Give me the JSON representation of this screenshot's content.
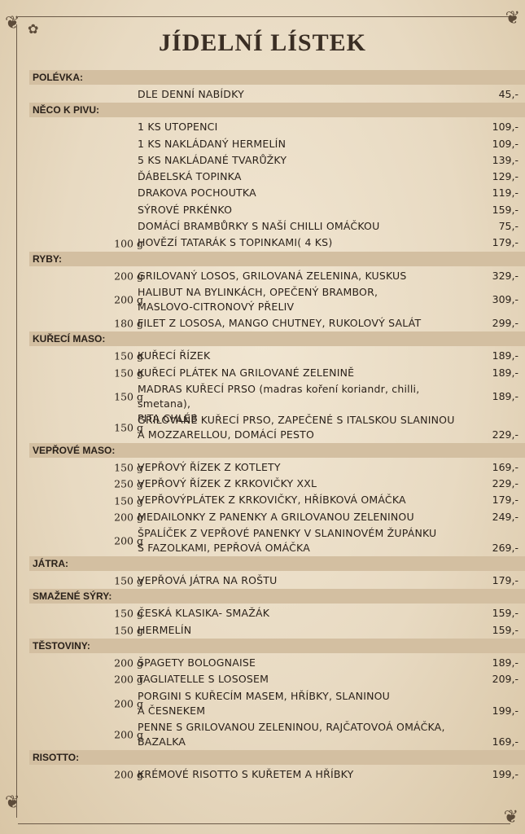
{
  "menu": {
    "title": "JÍDELNÍ LÍSTEK",
    "sections": [
      {
        "name": "POLÉVKA:",
        "items": [
          {
            "weight": "",
            "name": "DLE DENNÍ NABÍDKY",
            "price": "45,-",
            "lines": 1
          }
        ]
      },
      {
        "name": "NĚCO K PIVU:",
        "items": [
          {
            "weight": "",
            "name": "1 KS UTOPENCI",
            "price": "109,-",
            "lines": 1
          },
          {
            "weight": "",
            "name": "1 KS NAKLÁDANÝ HERMELÍN",
            "price": "109,-",
            "lines": 1
          },
          {
            "weight": "",
            "name": "5 KS NAKLÁDANÉ TVARŮŽKY",
            "price": "139,-",
            "lines": 1
          },
          {
            "weight": "",
            "name": "ĎÁBELSKÁ TOPINKA",
            "price": "129,-",
            "lines": 1
          },
          {
            "weight": "",
            "name": "DRAKOVA POCHOUTKA",
            "price": "119,-",
            "lines": 1
          },
          {
            "weight": "",
            "name": "SÝROVÉ PRKÉNKO",
            "price": "159,-",
            "lines": 1
          },
          {
            "weight": "",
            "name": "DOMÁCÍ BRAMBŮRKY S NAŠÍ CHILLI OMÁČKOU",
            "price": "75,-",
            "lines": 1
          },
          {
            "weight": "100 g",
            "name": "HOVĚZÍ TATARÁK S TOPINKAMI( 4 KS)",
            "price": "179,-",
            "lines": 1
          }
        ]
      },
      {
        "name": "RYBY:",
        "items": [
          {
            "weight": "200 g",
            "name": "GRILOVANÝ LOSOS, GRILOVANÁ ZELENINA, KUSKUS",
            "price": "329,-",
            "lines": 1
          },
          {
            "weight": "200 g",
            "name": "HALIBUT NA BYLINKÁCH, OPEČENÝ BRAMBOR, MASLOVO-CITRONOVÝ PŘELIV",
            "price": "309,-",
            "lines": 2,
            "pricePos": "mid"
          },
          {
            "weight": "180 g",
            "name": "FILET Z LOSOSA, MANGO CHUTNEY, RUKOLOVÝ SALÁT",
            "price": "299,-",
            "lines": 1
          }
        ]
      },
      {
        "name": "KUŘECÍ MASO:",
        "items": [
          {
            "weight": "150 g",
            "name": "KUŘECÍ ŘÍZEK",
            "price": "189,-",
            "lines": 1
          },
          {
            "weight": "150 g",
            "name": "KUŘECÍ PLÁTEK NA GRILOVANÉ ZELENINĚ",
            "price": "189,-",
            "lines": 1
          },
          {
            "weight": "150 g",
            "name": "MADRAS KUŘECÍ PRSO (madras koření koriandr, chilli, smetana), PITA CHLÉB",
            "price": "189,-",
            "lines": 2,
            "pricePos": "mid"
          },
          {
            "weight": "150 g",
            "name": "GRILOVANÉ KUŘECÍ PRSO, ZAPEČENÉ S ITALSKOU SLANINOU A MOZZARELLOU, DOMÁCÍ PESTO",
            "price": "229,-",
            "lines": 2,
            "pricePos": "bot"
          }
        ]
      },
      {
        "name": "VEPŘOVÉ MASO:",
        "items": [
          {
            "weight": "150 g",
            "name": "VEPŘOVÝ ŘÍZEK Z KOTLETY",
            "price": "169,-",
            "lines": 1
          },
          {
            "weight": "250 g",
            "name": "VEPŘOVÝ ŘÍZEK Z KRKOVIČKY XXL",
            "price": "229,-",
            "lines": 1
          },
          {
            "weight": "150 g",
            "name": "VEPŘOVÝPLÁTEK Z KRKOVIČKY, HŘÍBKOVÁ OMÁČKA",
            "price": "179,-",
            "lines": 1
          },
          {
            "weight": "200 g",
            "name": "MEDAILONKY Z PANENKY A GRILOVANOU ZELENINOU",
            "price": "249,-",
            "lines": 1
          },
          {
            "weight": "200 g",
            "name": "ŠPALÍČEK Z VEPŘOVÉ PANENKY V SLANINOVÉM ŽUPÁNKU S FAZOLKAMI, PEPŘOVÁ OMÁČKA",
            "price": "269,-",
            "lines": 2,
            "pricePos": "bot"
          }
        ]
      },
      {
        "name": "JÁTRA:",
        "items": [
          {
            "weight": "150 g",
            "name": "VEPŘOVÁ JÁTRA NA ROŠTU",
            "price": "179,-",
            "lines": 1
          }
        ]
      },
      {
        "name": "SMAŽENÉ SÝRY:",
        "items": [
          {
            "weight": "150 g",
            "name": "ČESKÁ KLASIKA- SMAŽÁK",
            "price": "159,-",
            "lines": 1
          },
          {
            "weight": "150 g",
            "name": "HERMELÍN",
            "price": "159,-",
            "lines": 1
          }
        ]
      },
      {
        "name": "TĚSTOVINY:",
        "items": [
          {
            "weight": "200 g",
            "name": "ŠPAGETY BOLOGNAISE",
            "price": "189,-",
            "lines": 1
          },
          {
            "weight": "200 g",
            "name": "TAGLIATELLE S LOSOSEM",
            "price": "209,-",
            "lines": 1
          },
          {
            "weight": "200 g",
            "name": "PORGINI S KUŘECÍM MASEM, HŘÍBKY, SLANINOU A ČESNEKEM",
            "price": "199,-",
            "lines": 2,
            "pricePos": "bot"
          },
          {
            "weight": "200 g",
            "name": "PENNE S GRILOVANOU ZELENINOU, RAJČATOVOÁ OMÁČKA, BAZALKA",
            "price": "169,-",
            "lines": 2,
            "pricePos": "bot"
          }
        ]
      },
      {
        "name": "RISOTTO:",
        "items": [
          {
            "weight": "200 g",
            "name": "KRÉMOVÉ RISOTTO S KUŘETEM A HŘÍBKY",
            "price": "199,-",
            "lines": 1
          }
        ]
      }
    ]
  },
  "line_breaks": {
    "HALIBUT NA BYLINKÁCH, OPEČENÝ BRAMBOR, MASLOVO-CITRONOVÝ PŘELIV": [
      "HALIBUT NA BYLINKÁCH, OPEČENÝ BRAMBOR,",
      "MASLOVO-CITRONOVÝ PŘELIV"
    ],
    "MADRAS KUŘECÍ PRSO (madras koření koriandr, chilli, smetana), PITA CHLÉB": [
      "MADRAS KUŘECÍ PRSO (madras koření koriandr, chilli, smetana),",
      "PITA CHLÉB"
    ],
    "GRILOVANÉ KUŘECÍ PRSO, ZAPEČENÉ S ITALSKOU SLANINOU A MOZZARELLOU, DOMÁCÍ PESTO": [
      "GRILOVANÉ KUŘECÍ PRSO, ZAPEČENÉ S ITALSKOU SLANINOU",
      "A MOZZARELLOU, DOMÁCÍ PESTO"
    ],
    "ŠPALÍČEK Z VEPŘOVÉ PANENKY V SLANINOVÉM ŽUPÁNKU S FAZOLKAMI, PEPŘOVÁ OMÁČKA": [
      "ŠPALÍČEK Z VEPŘOVÉ PANENKY V SLANINOVÉM ŽUPÁNKU",
      "S FAZOLKAMI, PEPŘOVÁ OMÁČKA"
    ],
    "PORGINI S KUŘECÍM MASEM, HŘÍBKY, SLANINOU A ČESNEKEM": [
      "PORGINI S KUŘECÍM MASEM, HŘÍBKY, SLANINOU",
      "A ČESNEKEM"
    ],
    "PENNE S GRILOVANOU ZELENINOU, RAJČATOVOÁ OMÁČKA, BAZALKA": [
      "PENNE S GRILOVANOU ZELENINOU, RAJČATOVOÁ OMÁČKA,",
      "BAZALKA"
    ]
  },
  "colors": {
    "paper": "#ecdfc9",
    "band": "#d3bfa1",
    "ink": "#2a211a",
    "frame": "#6b5a48"
  },
  "icons": {
    "corner_ornament": "flourish-icon"
  }
}
